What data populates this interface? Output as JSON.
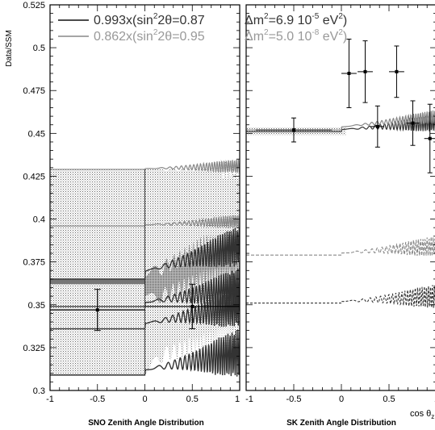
{
  "chart_data": {
    "type": "line",
    "ylabel": "Data/SSM",
    "ylim": [
      0.3,
      0.525
    ],
    "y_ticks": [
      "0.3",
      "0.325",
      "0.35",
      "0.375",
      "0.4",
      "0.425",
      "0.45",
      "0.475",
      "0.5",
      "0.525"
    ],
    "legend": [
      {
        "main": "0.993x(sin",
        "sup": "2",
        "rest": "2θ=0.87",
        "color": "#333333"
      },
      {
        "main": "0.862x(sin",
        "sup": "2",
        "rest": "2θ=0.95",
        "color": "#999999"
      }
    ],
    "legend_right": [
      {
        "main": "Δm",
        "sup1": "2",
        "mid": "=6.9 10",
        "sup2": "-5",
        "end": " eV",
        "sup3": "2",
        "close": ")",
        "color": "#333333"
      },
      {
        "main": "Δm",
        "sup1": "2",
        "mid": "=5.0 10",
        "sup2": "-8",
        "end": " eV",
        "sup3": "2",
        "close": ")",
        "color": "#999999"
      }
    ],
    "panels": [
      {
        "title": "SNO Zenith Angle Distribution",
        "xlim": [
          -1,
          1
        ],
        "x_ticks": [
          "-1",
          "-0.5",
          "0",
          "0.5",
          "1"
        ],
        "points": [
          {
            "x": -0.5,
            "y": 0.347,
            "xerr": 0.5,
            "yerr": 0.012
          },
          {
            "x": 0.5,
            "y": 0.349,
            "xerr": 0.5,
            "yerr": 0.013
          }
        ],
        "bands": [
          {
            "name": "",
            "y_low": 0.309,
            "y_high": 0.429
          },
          {
            "name": "",
            "y_low": 0.336,
            "y_high": 0.365
          }
        ],
        "curves": [
          {
            "y_day": 0.429,
            "color": "#888888"
          },
          {
            "y_day": 0.396,
            "color": "#888888"
          },
          {
            "y_day": 0.365,
            "color": "#333333"
          },
          {
            "y_day": 0.349,
            "color": "#333333"
          },
          {
            "y_day": 0.336,
            "color": "#333333"
          },
          {
            "y_day": 0.309,
            "color": "#333333"
          }
        ]
      },
      {
        "title": "SK Zenith Angle Distribution",
        "xlim": [
          -1,
          1
        ],
        "x_ticks": [
          "-1",
          "-0.5",
          "0",
          "0.5",
          "1"
        ],
        "xlabel": "cos θz",
        "points": [
          {
            "x": -0.5,
            "y": 0.452,
            "xerr": 0.4,
            "yerr": 0.007
          },
          {
            "x": 0.08,
            "y": 0.485,
            "xerr": 0.08,
            "yerr": 0.02
          },
          {
            "x": 0.25,
            "y": 0.486,
            "xerr": 0.08,
            "yerr": 0.018
          },
          {
            "x": 0.38,
            "y": 0.454,
            "xerr": 0.07,
            "yerr": 0.012
          },
          {
            "x": 0.58,
            "y": 0.486,
            "xerr": 0.08,
            "yerr": 0.015
          },
          {
            "x": 0.75,
            "y": 0.456,
            "xerr": 0.07,
            "yerr": 0.013
          },
          {
            "x": 0.93,
            "y": 0.447,
            "xerr": 0.06,
            "yerr": 0.02
          }
        ],
        "curves": [
          {
            "y_day": 0.451,
            "color": "#333333",
            "dash": false
          },
          {
            "y_day": 0.452,
            "color": "#888888",
            "dash": false
          },
          {
            "y_day": 0.379,
            "color": "#888888",
            "dash": true
          },
          {
            "y_day": 0.351,
            "color": "#333333",
            "dash": true
          }
        ]
      }
    ]
  }
}
